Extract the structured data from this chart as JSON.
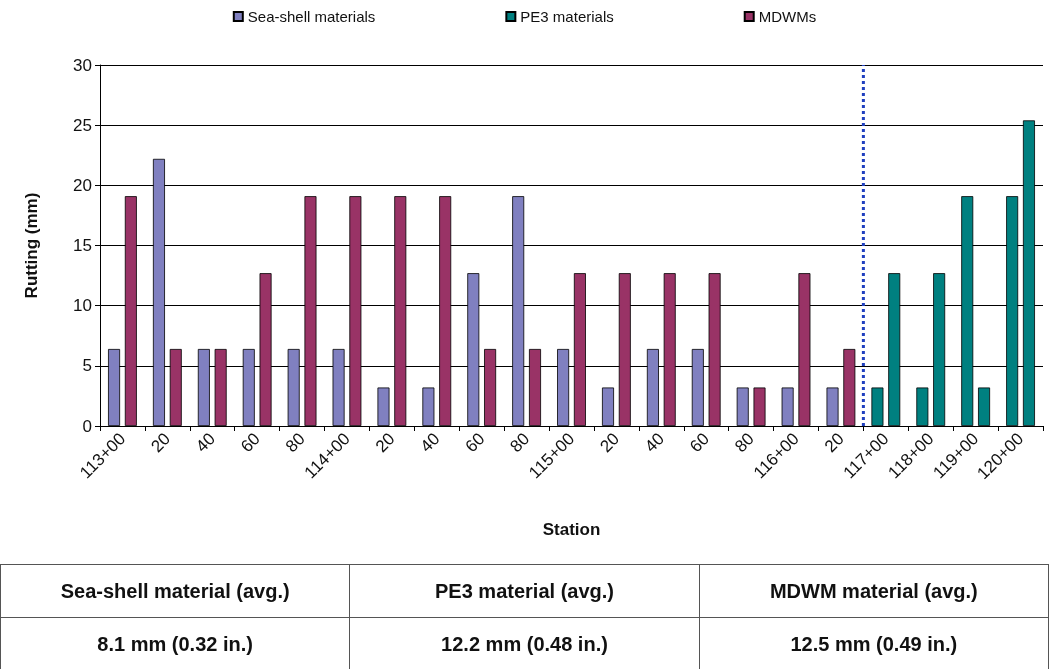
{
  "chart_data": {
    "type": "bar",
    "xlabel": "Station",
    "ylabel": "Rutting (mm)",
    "categories": [
      "113+00",
      "20",
      "40",
      "60",
      "80",
      "114+00",
      "20",
      "40",
      "60",
      "80",
      "115+00",
      "20",
      "40",
      "60",
      "80",
      "116+00",
      "20",
      "117+00",
      "118+00",
      "119+00",
      "120+00"
    ],
    "series": [
      {
        "name": "Sea-shell materials",
        "color": "#8080c0",
        "values": [
          6.4,
          22.2,
          6.4,
          6.4,
          6.4,
          6.4,
          3.2,
          3.2,
          12.7,
          19.1,
          6.4,
          3.2,
          6.4,
          6.4,
          3.2,
          3.2,
          3.2,
          null,
          null,
          null,
          null
        ]
      },
      {
        "name": "PE3 materials",
        "color": "#008080",
        "values": [
          null,
          null,
          null,
          null,
          null,
          null,
          null,
          null,
          null,
          null,
          null,
          null,
          null,
          null,
          null,
          null,
          null,
          3.2,
          3.2,
          19.1,
          19.1
        ]
      },
      {
        "name": "MDWMs",
        "color": "#993366",
        "values": [
          19.1,
          6.4,
          6.4,
          12.7,
          19.1,
          19.1,
          19.1,
          19.1,
          6.4,
          6.4,
          12.7,
          12.7,
          12.7,
          12.7,
          3.2,
          12.7,
          6.4,
          null,
          null,
          null,
          null
        ]
      },
      {
        "color": "#008080",
        "values": [
          null,
          null,
          null,
          null,
          null,
          null,
          null,
          null,
          null,
          null,
          null,
          null,
          null,
          null,
          null,
          null,
          null,
          12.7,
          12.7,
          3.2,
          25.4
        ]
      }
    ],
    "ylim": [
      0,
      30
    ],
    "yticks": [
      0,
      5,
      10,
      15,
      20,
      25,
      30
    ],
    "grid": "y",
    "legend": "top",
    "ref_lines": [
      {
        "axis": "x",
        "value": "117+00",
        "color": "#1f3fbf",
        "line_style": "dotted"
      }
    ],
    "annotations": [
      "Sea-shell material (avg.)",
      "PE3 material (avg.)",
      "MDWM material (avg.)",
      "8.1 mm (0.32 in.)",
      "12.2 mm (0.48 in.)",
      "12.5 mm (0.49 in.)"
    ]
  }
}
